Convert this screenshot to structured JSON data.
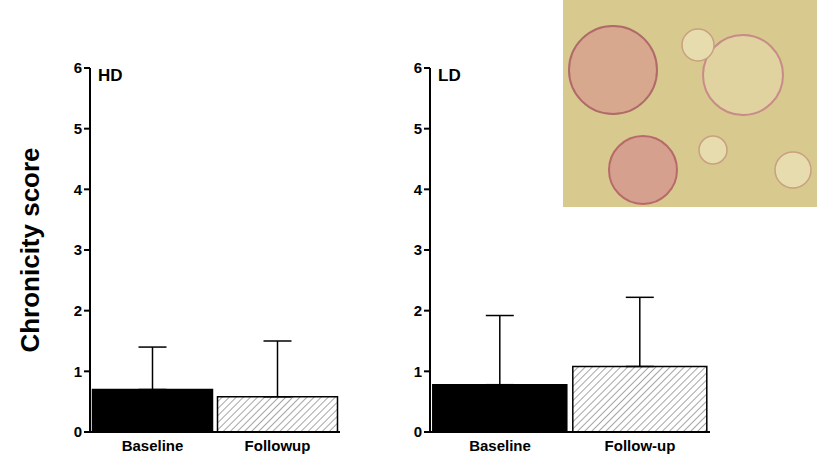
{
  "chart_data": [
    {
      "type": "bar",
      "title": "HD",
      "y_label": "Chronicity score",
      "categories": [
        "Baseline",
        "Followup"
      ],
      "values": [
        0.7,
        0.58
      ],
      "errors": [
        0.7,
        0.92
      ],
      "colors": [
        "#000000",
        "#ffffff"
      ],
      "ylim": [
        0,
        6
      ],
      "yticks": [
        0,
        1,
        2,
        3,
        4,
        5,
        6
      ],
      "grid": false
    },
    {
      "type": "bar",
      "title": "LD",
      "categories": [
        "Baseline",
        "Follow-up"
      ],
      "values": [
        0.78,
        1.08
      ],
      "errors": [
        1.14,
        1.14
      ],
      "colors": [
        "#000000",
        "#ffffff"
      ],
      "ylim": [
        0,
        6
      ],
      "yticks": [
        0,
        1,
        2,
        3,
        4,
        5,
        6
      ],
      "grid": false
    }
  ]
}
